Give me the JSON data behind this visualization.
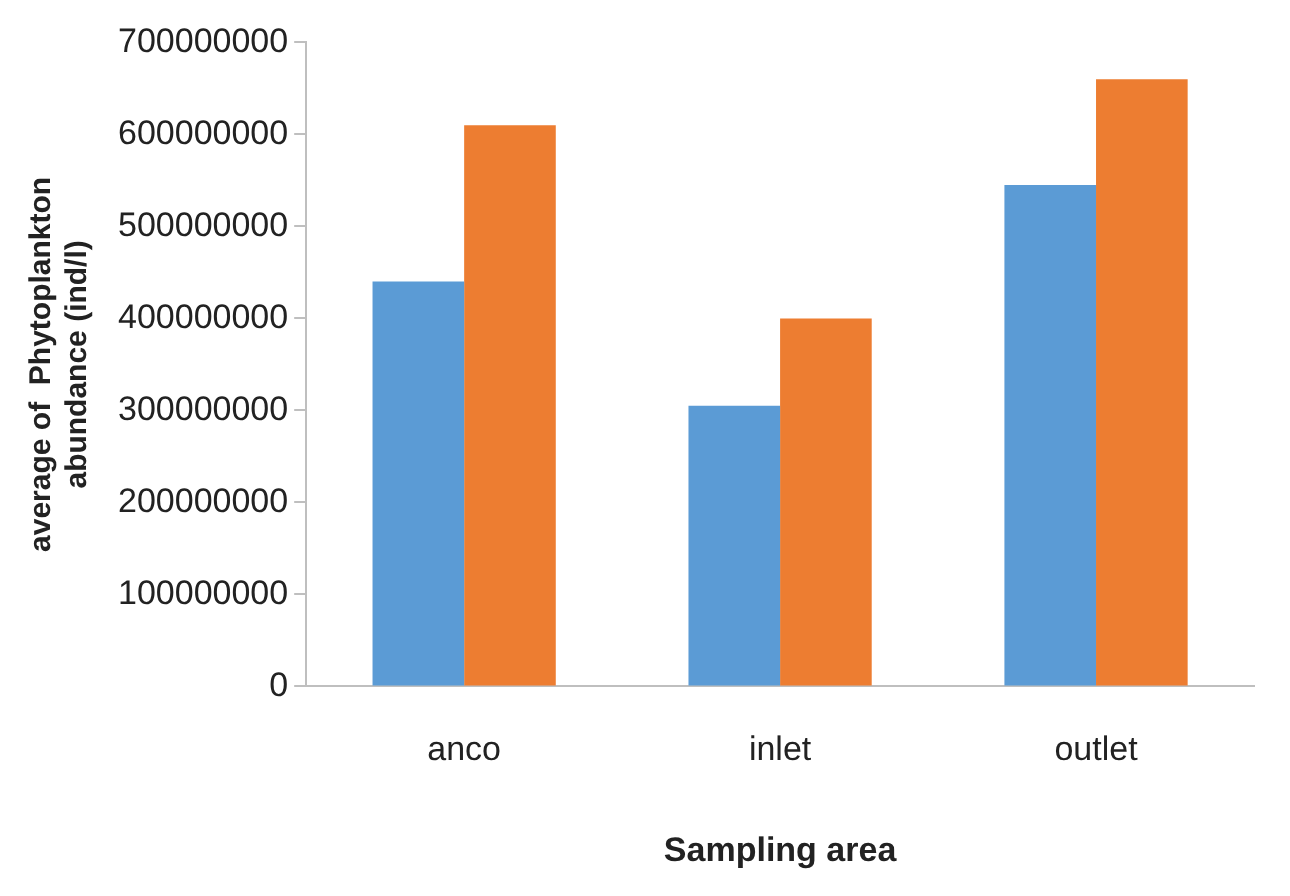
{
  "chart_data": {
    "type": "bar",
    "xlabel": "Sampling area",
    "ylabel": "average of  Phytoplankton\nabundance (ind/l)",
    "categories": [
      "anco",
      "inlet",
      "outlet"
    ],
    "series": [
      {
        "color": "#5b9bd5",
        "values": [
          440000000,
          305000000,
          545000000
        ]
      },
      {
        "color": "#ed7d31",
        "values": [
          610000000,
          400000000,
          660000000
        ]
      }
    ],
    "ylim": [
      0,
      700000000
    ],
    "yticks": [
      0,
      100000000,
      200000000,
      300000000,
      400000000,
      500000000,
      600000000,
      700000000
    ],
    "grid": false,
    "legend": false
  }
}
